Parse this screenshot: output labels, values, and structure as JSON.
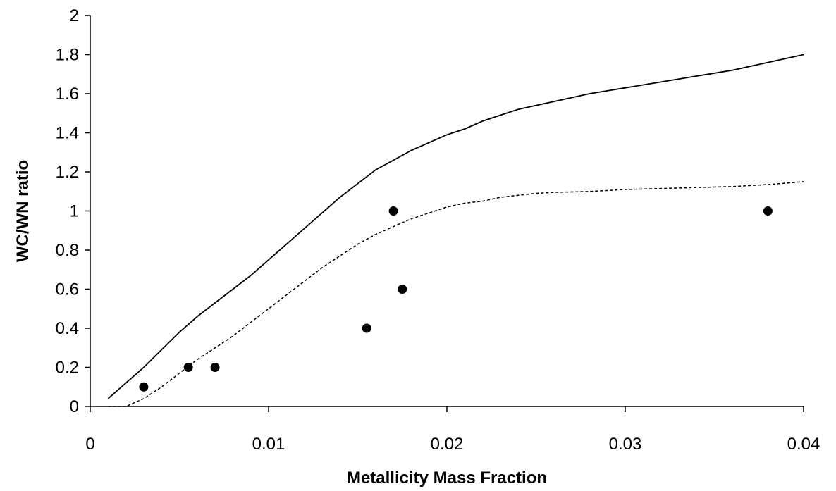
{
  "chart_data": {
    "type": "scatter",
    "title": "",
    "xlabel": "Metallicity Mass Fraction",
    "ylabel": "WC/WN ratio",
    "xlim": [
      0,
      0.04
    ],
    "ylim": [
      0,
      2
    ],
    "grid": false,
    "legend": "none",
    "x_ticks": [
      0,
      0.01,
      0.02,
      0.03,
      0.04
    ],
    "x_tick_labels": [
      "0",
      "0.01",
      "0.02",
      "0.03",
      "0.04"
    ],
    "y_ticks": [
      0,
      0.2,
      0.4,
      0.6,
      0.8,
      1,
      1.2,
      1.4,
      1.6,
      1.8,
      2
    ],
    "y_tick_labels": [
      "0",
      "0.2",
      "0.4",
      "0.6",
      "0.8",
      "1",
      "1.2",
      "1.4",
      "1.6",
      "1.8",
      "2"
    ],
    "series": [
      {
        "type": "line",
        "style": "solid",
        "color": "#000000",
        "x": [
          0.001,
          0.002,
          0.003,
          0.004,
          0.005,
          0.006,
          0.007,
          0.008,
          0.009,
          0.01,
          0.011,
          0.012,
          0.013,
          0.014,
          0.015,
          0.016,
          0.017,
          0.018,
          0.019,
          0.02,
          0.021,
          0.022,
          0.023,
          0.024,
          0.025,
          0.026,
          0.028,
          0.03,
          0.032,
          0.034,
          0.036,
          0.038,
          0.04
        ],
        "y": [
          0.04,
          0.12,
          0.2,
          0.29,
          0.38,
          0.46,
          0.53,
          0.6,
          0.67,
          0.75,
          0.83,
          0.91,
          0.99,
          1.07,
          1.14,
          1.21,
          1.26,
          1.31,
          1.35,
          1.39,
          1.42,
          1.46,
          1.49,
          1.52,
          1.54,
          1.56,
          1.6,
          1.63,
          1.66,
          1.69,
          1.72,
          1.76,
          1.8
        ]
      },
      {
        "type": "line",
        "style": "dashed",
        "color": "#000000",
        "x": [
          0.001,
          0.002,
          0.003,
          0.004,
          0.005,
          0.006,
          0.007,
          0.008,
          0.009,
          0.01,
          0.011,
          0.012,
          0.013,
          0.014,
          0.015,
          0.016,
          0.017,
          0.018,
          0.019,
          0.02,
          0.021,
          0.022,
          0.023,
          0.024,
          0.025,
          0.026,
          0.028,
          0.03,
          0.032,
          0.034,
          0.036,
          0.038,
          0.04
        ],
        "y": [
          0.0,
          0.0,
          0.04,
          0.1,
          0.17,
          0.24,
          0.3,
          0.36,
          0.43,
          0.5,
          0.57,
          0.64,
          0.71,
          0.77,
          0.83,
          0.88,
          0.92,
          0.96,
          0.99,
          1.02,
          1.04,
          1.05,
          1.07,
          1.08,
          1.09,
          1.095,
          1.1,
          1.11,
          1.115,
          1.12,
          1.125,
          1.135,
          1.15
        ]
      },
      {
        "type": "scatter",
        "marker": "circle",
        "color": "#000000",
        "x": [
          0.003,
          0.0055,
          0.007,
          0.0155,
          0.017,
          0.0175,
          0.038
        ],
        "y": [
          0.1,
          0.2,
          0.2,
          0.4,
          1.0,
          0.6,
          1.0
        ]
      }
    ]
  }
}
